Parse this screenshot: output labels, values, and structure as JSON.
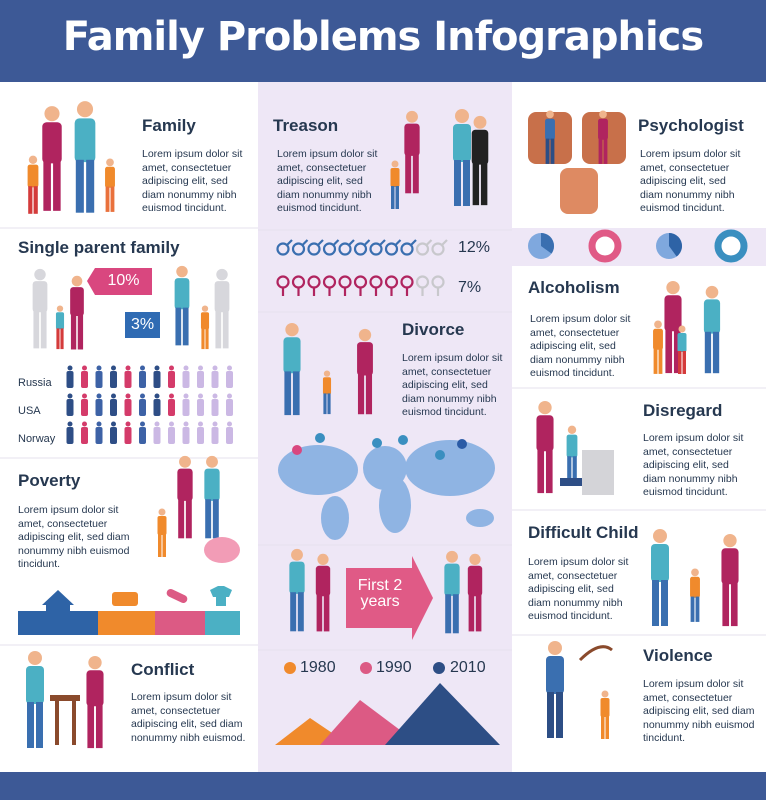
{
  "header": {
    "title": "Family Problems Infographics"
  },
  "sections": {
    "family": {
      "title": "Family",
      "text": "Lorem ipsum dolor sit\namet, consectetuer\nadipiscing elit, sed\ndiam nonummy nibh\neuismod tincidunt."
    },
    "treason": {
      "title": "Treason",
      "text": "Lorem ipsum dolor sit\namet, consectetuer\nadipiscing elit, sed\ndiam nonummy nibh\neuismod tincidunt."
    },
    "psychologist": {
      "title": "Psychologist",
      "text": "Lorem ipsum dolor sit\namet, consectetuer\nadipiscing elit, sed\ndiam nonummy nibh\neuismod tincidunt."
    },
    "single_parent": {
      "title": "Single parent family"
    },
    "alcoholism": {
      "title": "Alcoholism",
      "text": "Lorem ipsum dolor sit\namet, consectetuer\nadipiscing elit, sed\ndiam nonummy nibh\neuismod tincidunt."
    },
    "divorce": {
      "title": "Divorce",
      "text": "Lorem ipsum dolor sit\namet, consectetuer\nadipiscing elit, sed\ndiam nonummy nibh\neuismod tincidunt."
    },
    "disregard": {
      "title": "Disregard",
      "text": "Lorem ipsum dolor sit\namet, consectetuer\nadipiscing elit, sed\ndiam nonummy nibh\neuismod tincidunt."
    },
    "poverty": {
      "title": "Poverty",
      "text": "Lorem ipsum dolor sit\namet, consectetuer\nadipiscing elit, sed diam\nnonummy nibh euismod\ntincidunt."
    },
    "difficult_child": {
      "title": "Difficult Child",
      "text": "Lorem ipsum dolor sit\namet, consectetuer\nadipiscing elit, sed\ndiam nonummy nibh\neuismod tincidunt."
    },
    "conflict": {
      "title": "Conflict",
      "text": "Lorem ipsum dolor sit\namet, consectetuer\nadipiscing elit, sed diam\nnonummy nibh euismod."
    },
    "violence": {
      "title": "Violence",
      "text": "Lorem ipsum dolor sit\namet, consectetuer\nadipiscing elit, sed diam\nnonummy nibh euismod\ntincidunt."
    }
  },
  "single_parent_stats": [
    "10%",
    "3%"
  ],
  "countries": [
    "Russia",
    "USA",
    "Norway"
  ],
  "treason_stats": {
    "male": "12%",
    "female": "7%"
  },
  "first_years": "First 2\nyears",
  "legend": [
    "1980",
    "1990",
    "2010"
  ]
}
